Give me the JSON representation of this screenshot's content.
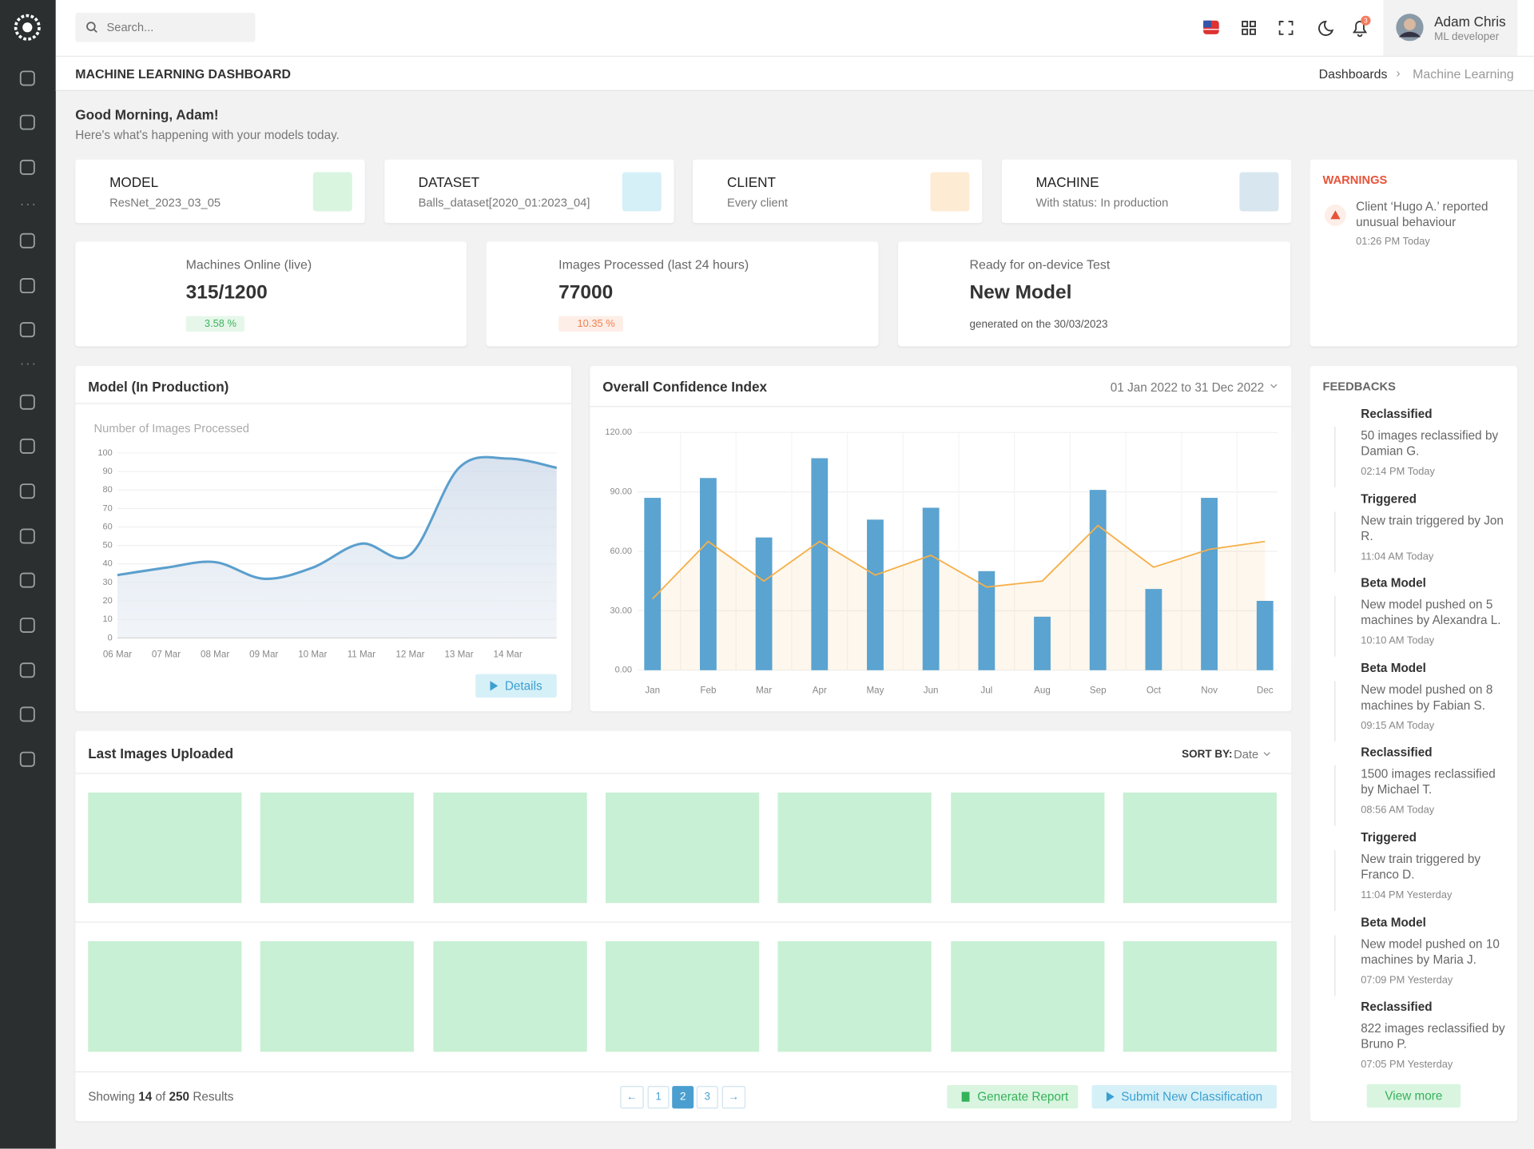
{
  "header": {
    "search_placeholder": "Search...",
    "notifications": "3",
    "user_name": "Adam Chris",
    "user_role": "ML developer"
  },
  "page_title": "MACHINE LEARNING DASHBOARD",
  "breadcrumbs": [
    "Dashboards",
    "Machine Learning"
  ],
  "greeting": {
    "title": "Good Morning, Adam!",
    "subtitle": "Here's what's happening with your models today."
  },
  "filters": [
    {
      "label": "MODEL",
      "value": "ResNet_2023_03_05"
    },
    {
      "label": "DATASET",
      "value": "Balls_dataset[2020_01:2023_04]"
    },
    {
      "label": "CLIENT",
      "value": "Every client"
    },
    {
      "label": "MACHINE",
      "value": "With status: In production"
    }
  ],
  "warnings": {
    "title": "WARNINGS",
    "items": [
      {
        "text": "Client ‘Hugo A.’ reported unusual behaviour",
        "time": "01:26 PM Today"
      }
    ]
  },
  "stats": [
    {
      "label": "Machines Online (live)",
      "value": "315/1200",
      "change": "3.58 %"
    },
    {
      "label": "Images Processed (last 24 hours)",
      "value": "77000",
      "change": "10.35 %"
    },
    {
      "label": "Ready for on-device Test",
      "value": "New Model",
      "note": "generated on the 30/03/2023"
    }
  ],
  "chart_data": [
    {
      "type": "area",
      "title": "Model (In Production)",
      "y_label": "Number of Images Processed",
      "categories": [
        "06 Mar",
        "07 Mar",
        "08 Mar",
        "09 Mar",
        "10 Mar",
        "11 Mar",
        "12 Mar",
        "13 Mar",
        "14 Mar",
        null
      ],
      "values": [
        34,
        38,
        41,
        32,
        38,
        51,
        45,
        92,
        97,
        92
      ],
      "color": "#5b9fcd",
      "ylim": [
        0,
        100
      ],
      "yticks": [
        0,
        10,
        20,
        30,
        40,
        50,
        60,
        70,
        80,
        90,
        100
      ],
      "grid": true,
      "button": "Details"
    },
    {
      "type": "bar_line",
      "title": "Overall Confidence Index",
      "date_range": "01 Jan 2022 to 31 Dec 2022",
      "categories": [
        "Jan",
        "Feb",
        "Mar",
        "Apr",
        "May",
        "Jun",
        "Jul",
        "Aug",
        "Sep",
        "Oct",
        "Nov",
        "Dec"
      ],
      "series": [
        {
          "type": "bar",
          "color": "#5ba3d0",
          "values": [
            87,
            97,
            67,
            107,
            76,
            82,
            50,
            27,
            91,
            41,
            87,
            35
          ]
        },
        {
          "type": "line",
          "color": "#f5b04a",
          "values": [
            36,
            65,
            45,
            65,
            48,
            58,
            42,
            45,
            73,
            52,
            61,
            65
          ]
        }
      ],
      "ylim": [
        0,
        120
      ],
      "yticks": [
        {
          "value": 0,
          "label": "0.00"
        },
        {
          "value": 30,
          "label": "30.00"
        },
        {
          "value": 60,
          "label": "60.00"
        },
        {
          "value": 90,
          "label": "90.00"
        },
        {
          "value": 120,
          "label": "120.00"
        }
      ],
      "grid": true
    }
  ],
  "images": {
    "title": "Last Images Uploaded",
    "sort_label": "SORT BY:",
    "sort_value": "Date",
    "showing": [
      "Showing",
      "14",
      "of",
      "250",
      "Results"
    ],
    "pages": [
      "←",
      "1",
      "2",
      "3",
      "→"
    ],
    "buttons": [
      "Generate Report",
      "Submit New Classification"
    ]
  },
  "feedbacks": {
    "title": "FEEDBACKS",
    "items": [
      {
        "type": "Reclassified",
        "text": "50 images reclassified by Damian G.",
        "time": "02:14 PM Today"
      },
      {
        "type": "Triggered",
        "text": "New train triggered by Jon R.",
        "time": "11:04 AM Today"
      },
      {
        "type": "Beta Model",
        "text": "New model pushed on 5 machines by Alexandra L.",
        "time": "10:10 AM Today"
      },
      {
        "type": "Beta Model",
        "text": "New model pushed on 8 machines by Fabian S.",
        "time": "09:15 AM Today"
      },
      {
        "type": "Reclassified",
        "text": "1500 images reclassified by Michael T.",
        "time": "08:56 AM Today"
      },
      {
        "type": "Triggered",
        "text": "New train triggered by Franco D.",
        "time": "11:04 PM Yesterday"
      },
      {
        "type": "Beta Model",
        "text": "New model pushed on 10 machines by Maria J.",
        "time": "07:09 PM Yesterday"
      },
      {
        "type": "Reclassified",
        "text": "822 images reclassified by Bruno P.",
        "time": "07:05 PM Yesterday"
      }
    ],
    "more": "View more"
  }
}
